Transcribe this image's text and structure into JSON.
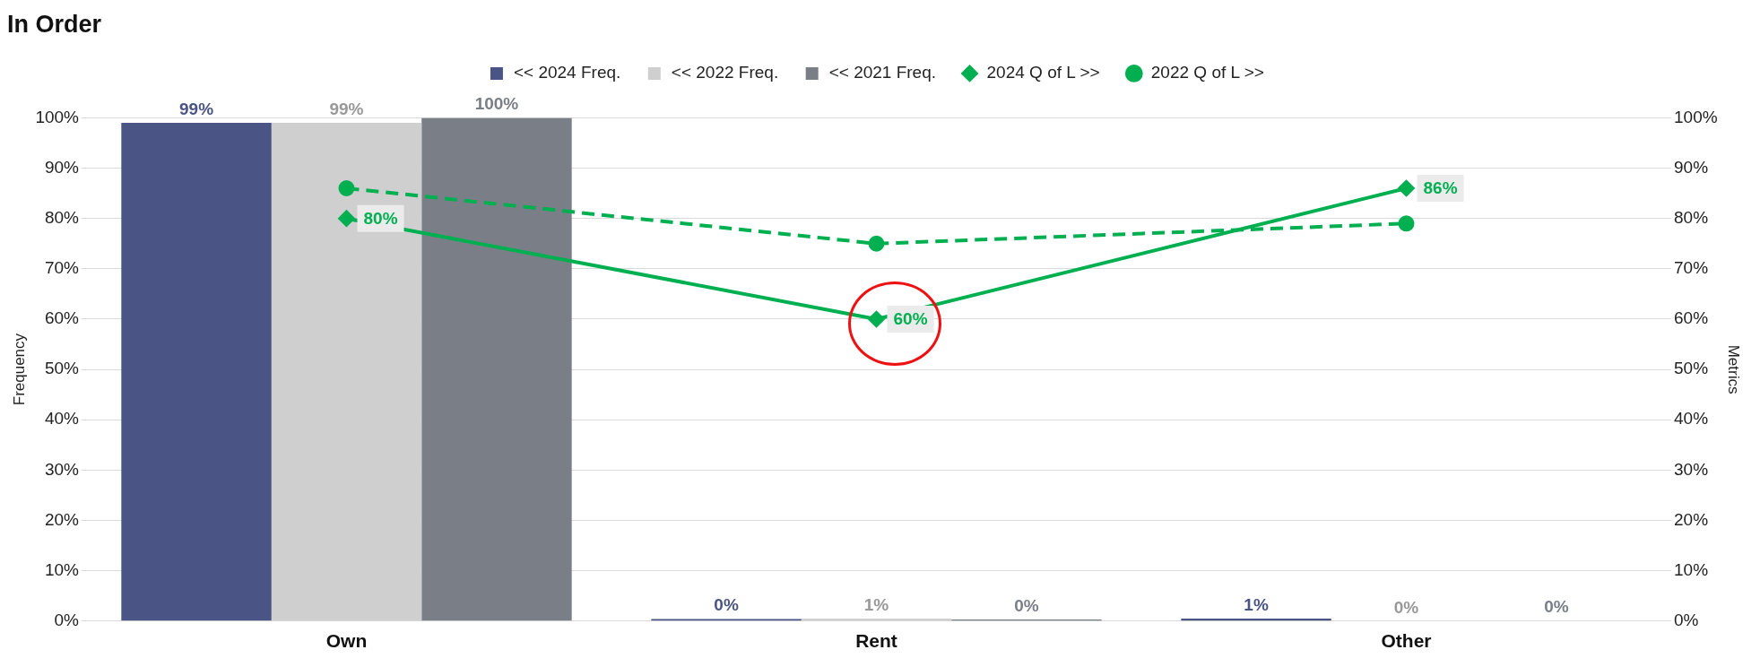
{
  "chart_data": {
    "type": "bar",
    "title": "In Order",
    "categories": [
      "Own",
      "Rent",
      "Other"
    ],
    "series": [
      {
        "name": "<< 2024 Freq.",
        "color": "#4a5585",
        "values": [
          99,
          0.4,
          0.5
        ],
        "value_labels": [
          "99%",
          "0%",
          "1%"
        ]
      },
      {
        "name": "<< 2022 Freq.",
        "color": "#cfcfcf",
        "values": [
          99,
          0.5,
          0
        ],
        "value_labels": [
          "99%",
          "1%",
          "0%"
        ]
      },
      {
        "name": "<< 2021 Freq.",
        "color": "#7a7f87",
        "values": [
          100,
          0.3,
          0.1
        ],
        "value_labels": [
          "100%",
          "0%",
          "0%"
        ]
      },
      {
        "name": "2024 Q of L >>",
        "type": "line",
        "axis": "y2",
        "color": "#00b050",
        "marker": "diamond",
        "line_style": "solid",
        "values": [
          80,
          60,
          86
        ],
        "value_labels": [
          "80%",
          "60%",
          "86%"
        ]
      },
      {
        "name": "2022 Q of L >>",
        "type": "line",
        "axis": "y2",
        "color": "#00b050",
        "marker": "circle",
        "line_style": "dashed",
        "values": [
          86,
          75,
          79
        ]
      }
    ],
    "ylabel": "Frequency",
    "y2label": "Metrics",
    "ylim": [
      0,
      100
    ],
    "yticks": [
      {
        "value": 0,
        "label": "0%"
      },
      {
        "value": 10,
        "label": "10%"
      },
      {
        "value": 20,
        "label": "20%"
      },
      {
        "value": 30,
        "label": "30%"
      },
      {
        "value": 40,
        "label": "40%"
      },
      {
        "value": 50,
        "label": "50%"
      },
      {
        "value": 60,
        "label": "60%"
      },
      {
        "value": 70,
        "label": "70%"
      },
      {
        "value": 80,
        "label": "80%"
      },
      {
        "value": 90,
        "label": "90%"
      },
      {
        "value": 100,
        "label": "100%"
      }
    ],
    "y2lim": [
      0,
      100
    ],
    "y2ticks": [
      {
        "value": 0,
        "label": "0%"
      },
      {
        "value": 10,
        "label": "10%"
      },
      {
        "value": 20,
        "label": "20%"
      },
      {
        "value": 30,
        "label": "30%"
      },
      {
        "value": 40,
        "label": "40%"
      },
      {
        "value": 50,
        "label": "50%"
      },
      {
        "value": 60,
        "label": "60%"
      },
      {
        "value": 70,
        "label": "70%"
      },
      {
        "value": 80,
        "label": "80%"
      },
      {
        "value": 90,
        "label": "90%"
      },
      {
        "value": 100,
        "label": "100%"
      }
    ],
    "grid": "y",
    "legend": "top"
  }
}
